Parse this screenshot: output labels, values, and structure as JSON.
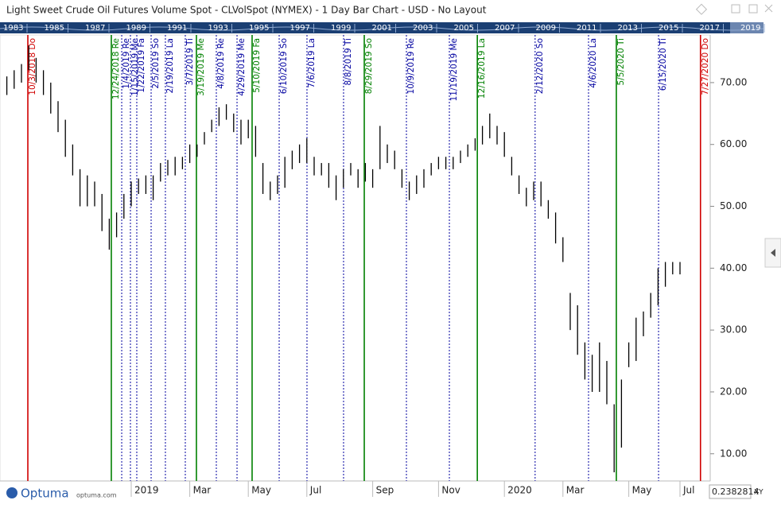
{
  "chart_data": {
    "type": "ohlc",
    "title": "Light Sweet Crude Oil Futures Volume Spot - CLVolSpot (NYMEX) - 1 Day Bar Chart - USD - No Layout",
    "navigator_years": [
      "1983",
      "1985",
      "1987",
      "1989",
      "1991",
      "1993",
      "1995",
      "1997",
      "1999",
      "2001",
      "2003",
      "2005",
      "2007",
      "2009",
      "2011",
      "2013",
      "2015",
      "2017",
      "2019"
    ],
    "categories": [
      null,
      null,
      null,
      null,
      null,
      null,
      null,
      null,
      null,
      null,
      null,
      null,
      null,
      null,
      null,
      null,
      null,
      "2019",
      null,
      null,
      null,
      null,
      null,
      null,
      null,
      "Mar",
      null,
      null,
      null,
      null,
      null,
      null,
      null,
      "May",
      null,
      null,
      null,
      null,
      null,
      null,
      null,
      "Jul",
      null,
      null,
      null,
      null,
      null,
      null,
      null,
      null,
      "Sep",
      null,
      null,
      null,
      null,
      null,
      null,
      null,
      null,
      "Nov",
      null,
      null,
      null,
      null,
      null,
      null,
      null,
      null,
      "2020",
      null,
      null,
      null,
      null,
      null,
      null,
      null,
      "Mar",
      null,
      null,
      null,
      null,
      null,
      null,
      null,
      null,
      "May",
      null,
      null,
      null,
      null,
      null,
      null,
      "Jul"
    ],
    "series": [
      {
        "name": "High",
        "values": [
          71,
          72,
          73,
          76,
          74,
          72,
          70,
          67,
          64,
          60,
          56,
          55,
          54,
          52,
          48,
          49,
          52,
          54,
          54.5,
          55,
          55,
          57,
          57.5,
          58,
          58,
          60,
          60,
          62,
          64,
          66,
          66.5,
          65,
          64,
          64,
          63,
          57,
          54,
          55,
          58,
          59,
          60,
          61,
          58,
          57,
          57,
          55,
          56,
          57,
          56,
          57,
          56,
          63,
          60,
          59,
          56,
          54,
          55,
          56,
          57,
          58,
          58,
          58,
          59,
          60,
          61,
          63,
          65,
          63,
          62,
          58,
          55,
          53,
          54,
          54,
          51,
          49,
          45,
          36,
          34,
          28,
          26,
          28,
          25,
          18,
          22,
          28,
          32,
          33,
          36,
          40,
          41,
          41,
          41
        ]
      },
      {
        "name": "Low",
        "values": [
          68,
          69,
          70,
          72,
          70,
          68,
          65,
          62,
          58,
          55,
          50,
          50,
          50,
          46,
          43,
          45,
          48,
          50,
          52,
          52,
          51,
          54,
          55,
          55,
          56,
          57,
          58,
          60,
          62,
          63,
          64,
          62,
          60,
          61,
          58,
          52,
          51,
          52,
          53,
          56,
          57,
          57,
          55,
          55,
          53,
          51,
          53,
          55,
          53,
          54,
          53,
          56,
          57,
          56,
          53,
          51,
          52,
          53,
          55,
          56,
          56,
          56,
          57,
          58,
          59,
          60,
          61,
          60,
          58,
          55,
          52,
          50,
          51,
          50,
          48,
          44,
          41,
          30,
          26,
          22,
          20,
          20,
          18,
          7,
          11,
          24,
          25,
          29,
          32,
          34,
          37,
          39,
          39
        ]
      }
    ],
    "color": "#000000",
    "ylim": [
      5.6,
      77.7
    ],
    "yticks": [
      {
        "value": 10,
        "label": "10.00"
      },
      {
        "value": 20,
        "label": "20.00"
      },
      {
        "value": 30,
        "label": "30.00"
      },
      {
        "value": 40,
        "label": "40.00"
      },
      {
        "value": 50,
        "label": "50.00"
      },
      {
        "value": 60,
        "label": "60.00"
      },
      {
        "value": 70,
        "label": "70.00"
      }
    ],
    "events": [
      {
        "x": 2.87,
        "label": "10/3/2018 Do",
        "color": "#d00000",
        "style": "solid"
      },
      {
        "x": 14.28,
        "label": "12/24/2018 Re",
        "color": "#008000",
        "style": "solid"
      },
      {
        "x": 15.7,
        "label": "1/4/2019 Re",
        "color": "#0000a0",
        "style": "dotted"
      },
      {
        "x": 16.89,
        "label": "1/15/2019 Me",
        "color": "#0000a0",
        "style": "dotted"
      },
      {
        "x": 17.76,
        "label": "1/22/2019 Fa",
        "color": "#0000a0",
        "style": "dotted"
      },
      {
        "x": 19.72,
        "label": "2/5/2019 So",
        "color": "#0000a0",
        "style": "dotted"
      },
      {
        "x": 21.67,
        "label": "2/19/2019 La",
        "color": "#0000a0",
        "style": "dotted"
      },
      {
        "x": 24.39,
        "label": "3/7/2019 Ti",
        "color": "#0000a0",
        "style": "dotted"
      },
      {
        "x": 25.91,
        "label": "3/19/2019 Me",
        "color": "#008000",
        "style": "solid"
      },
      {
        "x": 28.63,
        "label": "4/8/2019 Re",
        "color": "#0000a0",
        "style": "dotted"
      },
      {
        "x": 31.46,
        "label": "4/29/2019 Me",
        "color": "#0000a0",
        "style": "dotted"
      },
      {
        "x": 33.52,
        "label": "5/10/2019 Fa",
        "color": "#008000",
        "style": "solid"
      },
      {
        "x": 37.22,
        "label": "6/10/2019 So",
        "color": "#0000a0",
        "style": "dotted"
      },
      {
        "x": 41.02,
        "label": "7/6/2019 La",
        "color": "#0000a0",
        "style": "dotted"
      },
      {
        "x": 46.02,
        "label": "8/8/2019 Ti",
        "color": "#0000a0",
        "style": "dotted"
      },
      {
        "x": 48.85,
        "label": "8/29/2019 So",
        "color": "#008000",
        "style": "solid"
      },
      {
        "x": 54.61,
        "label": "10/9/2019 Re",
        "color": "#0000a0",
        "style": "dotted"
      },
      {
        "x": 60.48,
        "label": "11/19/2019 Me",
        "color": "#0000a0",
        "style": "dotted"
      },
      {
        "x": 64.3,
        "label": "12/16/2019 La",
        "color": "#008000",
        "style": "solid"
      },
      {
        "x": 72.2,
        "label": "2/12/2020 So",
        "color": "#0000a0",
        "style": "dotted"
      },
      {
        "x": 79.5,
        "label": "4/6/2020 La",
        "color": "#0000a0",
        "style": "dotted"
      },
      {
        "x": 83.3,
        "label": "5/5/2020 Ti",
        "color": "#008000",
        "style": "solid"
      },
      {
        "x": 89.07,
        "label": "6/15/2020 Ti",
        "color": "#0000a0",
        "style": "dotted"
      },
      {
        "x": 94.8,
        "label": "7/27/2020 Do",
        "color": "#d00000",
        "style": "solid"
      }
    ],
    "logo": "Optuma",
    "logo_url": "optuma.com",
    "cursor_value": "0.2382814",
    "cursor_mode": "XY"
  }
}
